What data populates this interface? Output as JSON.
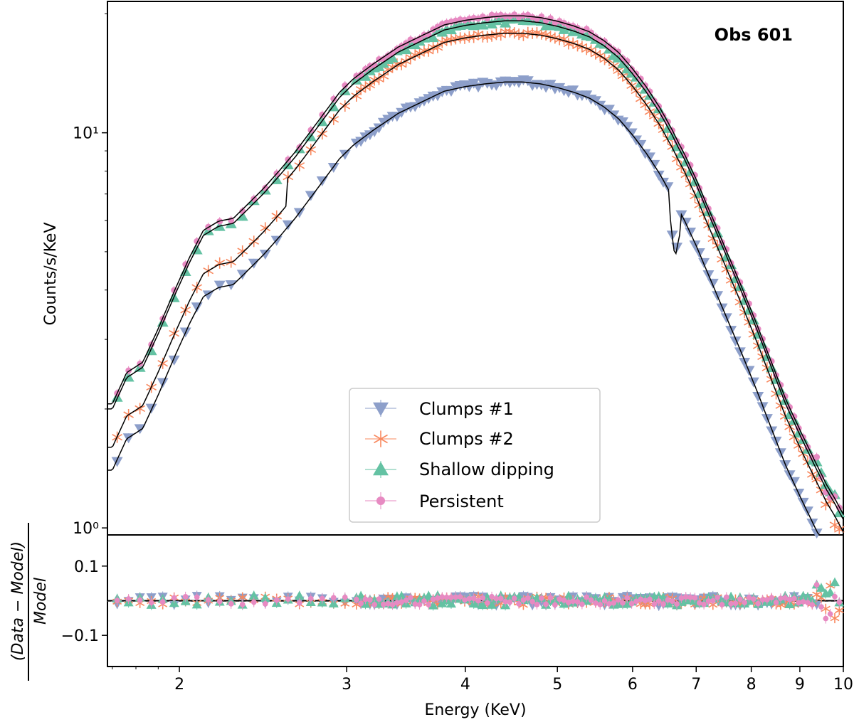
{
  "chart_data": {
    "type": "scatter",
    "annotation": "Obs 601",
    "xlabel": "Energy (KeV)",
    "ylabel": "Counts/s/KeV",
    "residual_ylabel_num": "(Data − Model)",
    "residual_ylabel_den": "Model",
    "xscale": "log",
    "yscale": "log",
    "xlim": [
      1.68,
      10.0
    ],
    "ylim": [
      0.96,
      21.5
    ],
    "residual_ylim": [
      -0.19,
      0.19
    ],
    "x_ticks": [
      2,
      3,
      4,
      5,
      6,
      7,
      8,
      9,
      10
    ],
    "x_tick_labels": [
      "2",
      "3",
      "4",
      "5",
      "6",
      "7",
      "8",
      "9",
      "10"
    ],
    "y_major_ticks": [
      1,
      10
    ],
    "y_major_labels": [
      "10⁰",
      "10¹"
    ],
    "y_minor_ticks": [
      2,
      3,
      4,
      5,
      6,
      7,
      8,
      9,
      20
    ],
    "residual_ticks": [
      0.1,
      -0.1
    ],
    "residual_tick_labels": [
      "0.1",
      "−0.1"
    ],
    "legend": {
      "placement": "lower-center",
      "entries": [
        "Clumps #1",
        "Clumps #2",
        "Shallow dipping",
        "Persistent"
      ]
    },
    "series": [
      {
        "name": "Clumps #1",
        "marker": "triangle-down",
        "color": "#8d9fca",
        "scale": 0.7,
        "scale_shift": 0.0,
        "residual_amp": 0.015
      },
      {
        "name": "Clumps #2",
        "marker": "star",
        "color": "#f8885e",
        "scale": 0.93,
        "scale_shift": -0.1,
        "residual_amp": 0.012
      },
      {
        "name": "Shallow dipping",
        "marker": "triangle-up",
        "color": "#64c2a3",
        "scale": 1.0,
        "scale_shift": 0.0,
        "residual_amp": 0.015
      },
      {
        "name": "Persistent",
        "marker": "circle",
        "color": "#e78ac2",
        "scale": 1.03,
        "scale_shift": 0.0,
        "residual_amp": 0.012
      }
    ],
    "base_model": {
      "energy": [
        1.7,
        1.76,
        1.83,
        1.9,
        1.97,
        2.05,
        2.12,
        2.2,
        2.28,
        2.36,
        2.45,
        2.55,
        2.65,
        2.75,
        2.85,
        2.95,
        3.05,
        3.2,
        3.4,
        3.6,
        3.8,
        4.0,
        4.2,
        4.4,
        4.6,
        4.8,
        5.0,
        5.2,
        5.4,
        5.6,
        5.8,
        6.0,
        6.2,
        6.4,
        6.6,
        6.7,
        6.8,
        7.0,
        7.2,
        7.5,
        7.8,
        8.1,
        8.4,
        8.7,
        9.0,
        9.3,
        9.6,
        9.8,
        10.0
      ],
      "counts": [
        2.0,
        2.4,
        2.55,
        3.1,
        3.8,
        4.7,
        5.5,
        5.8,
        5.9,
        6.4,
        7.0,
        7.8,
        8.7,
        9.8,
        11.0,
        12.3,
        13.3,
        14.5,
        16.0,
        17.1,
        18.2,
        18.7,
        19.0,
        19.2,
        19.2,
        19.0,
        18.6,
        18.1,
        17.5,
        16.6,
        15.5,
        14.1,
        12.7,
        11.3,
        9.9,
        9.2,
        8.6,
        7.4,
        6.3,
        5.0,
        4.0,
        3.2,
        2.55,
        2.05,
        1.72,
        1.46,
        1.25,
        1.15,
        1.05
      ]
    },
    "clumps1_feature": {
      "energy": [
        6.55,
        6.6,
        6.65,
        6.7,
        6.75
      ],
      "factor": [
        0.92,
        0.8,
        0.72,
        0.82,
        0.92
      ]
    }
  }
}
